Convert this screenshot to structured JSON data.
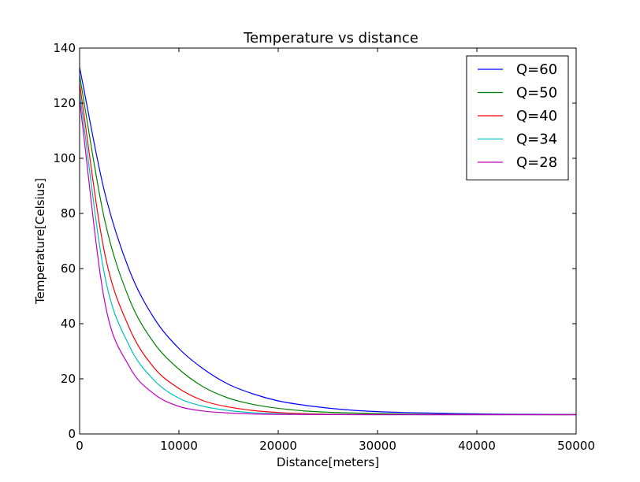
{
  "chart_data": {
    "type": "line",
    "title": "Temperature vs distance",
    "xlabel": "Distance[meters]",
    "ylabel": "Temperature[Celsius]",
    "xlim": [
      0,
      50000
    ],
    "ylim": [
      0,
      140
    ],
    "xticks": [
      0,
      10000,
      20000,
      30000,
      40000,
      50000
    ],
    "yticks": [
      0,
      20,
      40,
      60,
      80,
      100,
      120,
      140
    ],
    "grid": false,
    "legend_position": "top-right",
    "series": [
      {
        "name": "Q=60",
        "color": "#0000ff",
        "x": [
          0,
          2500,
          5000,
          7500,
          10000,
          12500,
          15000,
          17500,
          20000,
          22500,
          25000,
          27500,
          30000,
          32500,
          35000,
          37500,
          40000,
          42500,
          45000,
          47500,
          50000
        ],
        "y": [
          133,
          88,
          59.5,
          42,
          31,
          23.5,
          18,
          14.5,
          12,
          10.5,
          9.4,
          8.6,
          8.1,
          7.8,
          7.6,
          7.4,
          7.3,
          7.2,
          7.15,
          7.1,
          7.05
        ]
      },
      {
        "name": "Q=50",
        "color": "#008000",
        "x": [
          0,
          2500,
          5000,
          7500,
          10000,
          12500,
          15000,
          17500,
          20000,
          22500,
          25000,
          27500,
          30000,
          32500,
          35000,
          37500,
          40000,
          42500,
          45000,
          47500,
          50000
        ],
        "y": [
          130,
          78,
          49,
          33,
          23.5,
          17,
          13,
          10.7,
          9.3,
          8.4,
          7.9,
          7.6,
          7.4,
          7.25,
          7.15,
          7.1,
          7.05,
          7.03,
          7.02,
          7.01,
          7
        ]
      },
      {
        "name": "Q=40",
        "color": "#ff0000",
        "x": [
          0,
          2500,
          5000,
          7500,
          10000,
          12500,
          15000,
          17500,
          20000,
          22500,
          25000,
          27500,
          30000,
          32500,
          35000,
          37500,
          40000,
          42500,
          45000,
          47500,
          50000
        ],
        "y": [
          127,
          66,
          38.5,
          24,
          16.5,
          12,
          9.8,
          8.5,
          7.8,
          7.4,
          7.2,
          7.1,
          7.05,
          7.02,
          7.01,
          7,
          7,
          7,
          7,
          7,
          7
        ]
      },
      {
        "name": "Q=34",
        "color": "#00bfbf",
        "x": [
          0,
          2500,
          5000,
          7500,
          10000,
          12500,
          15000,
          17500,
          20000,
          22500,
          25000,
          27500,
          30000,
          32500,
          35000,
          37500,
          40000,
          42500,
          45000,
          47500,
          50000
        ],
        "y": [
          124,
          58,
          32,
          19.5,
          13,
          10,
          8.5,
          7.7,
          7.35,
          7.15,
          7.07,
          7.03,
          7.01,
          7,
          7,
          7,
          7,
          7,
          7,
          7,
          7
        ]
      },
      {
        "name": "Q=28",
        "color": "#bf00bf",
        "x": [
          0,
          2500,
          5000,
          7500,
          10000,
          12500,
          15000,
          17500,
          20000,
          22500,
          25000,
          27500,
          30000,
          32500,
          35000,
          37500,
          40000,
          42500,
          45000,
          47500,
          50000
        ],
        "y": [
          121,
          48.5,
          24.5,
          14.5,
          10,
          8.3,
          7.6,
          7.25,
          7.1,
          7.05,
          7.02,
          7.01,
          7,
          7,
          7,
          7,
          7,
          7,
          7,
          7,
          7
        ]
      }
    ]
  }
}
